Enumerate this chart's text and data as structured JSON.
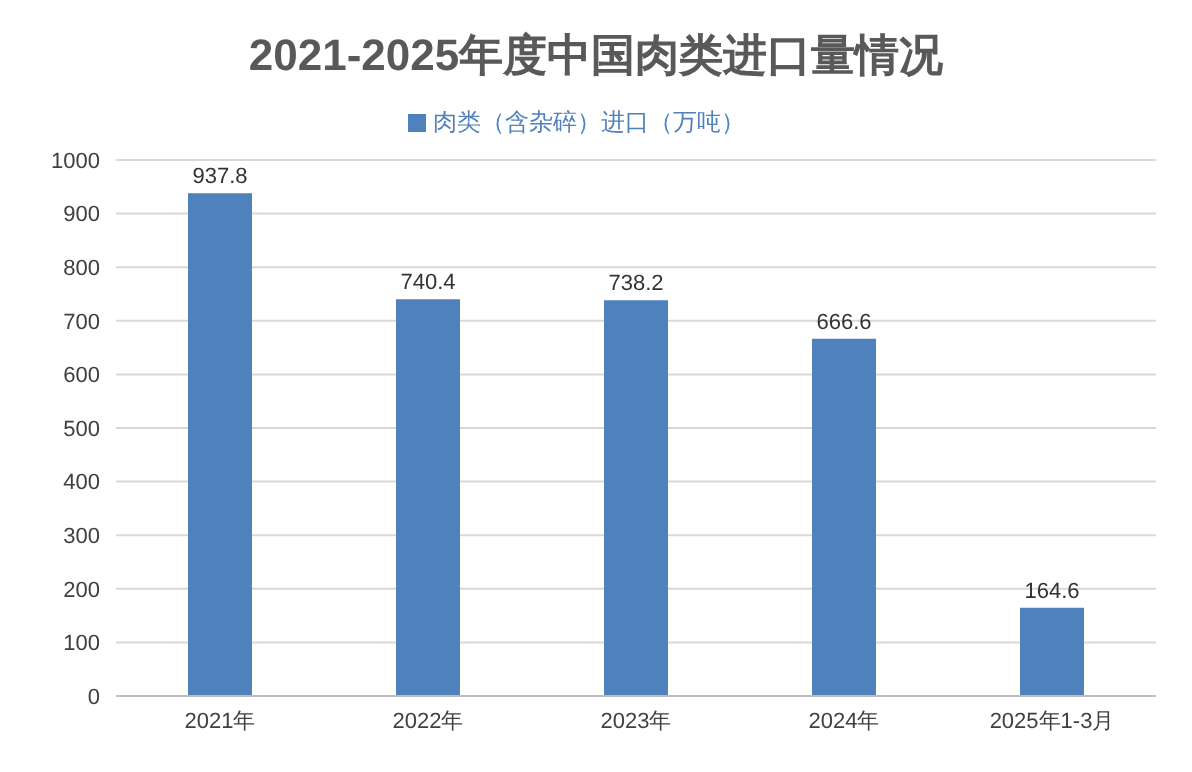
{
  "chart_data": {
    "type": "bar",
    "title": "2021-2025年度中国肉类进口量情况",
    "categories": [
      "2021年",
      "2022年",
      "2023年",
      "2024年",
      "2025年1-3月"
    ],
    "series": [
      {
        "name": "肉类（含杂碎）进口（万吨）",
        "color": "#4f81bd",
        "values": [
          937.8,
          740.4,
          738.2,
          666.6,
          164.6
        ]
      }
    ],
    "ylim": [
      0,
      1000
    ],
    "yticks": [
      0,
      100,
      200,
      300,
      400,
      500,
      600,
      700,
      800,
      900,
      1000
    ],
    "grid": "y",
    "legend": "top",
    "data_labels": true
  }
}
